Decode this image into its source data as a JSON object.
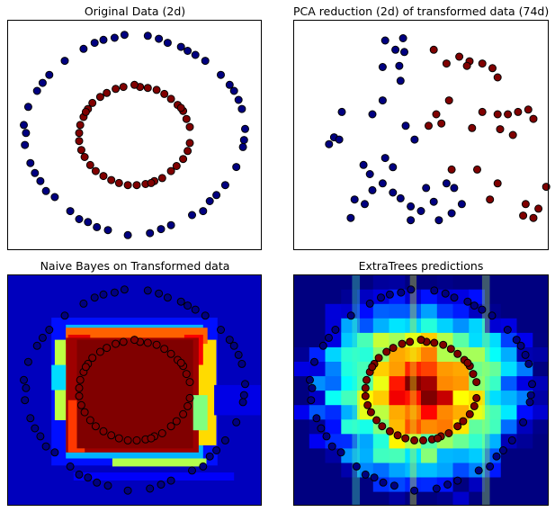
{
  "chart_data": [
    {
      "type": "scatter",
      "title": "Original Data (2d)",
      "xlim": [
        -1.15,
        1.15
      ],
      "ylim": [
        -1.15,
        1.15
      ],
      "series": [
        {
          "color": "#000080",
          "points": [
            [
              0.12,
              0.99
            ],
            [
              0.3,
              0.92
            ],
            [
              0.48,
              0.84
            ],
            [
              0.64,
              0.74
            ],
            [
              0.78,
              0.6
            ],
            [
              0.9,
              0.44
            ],
            [
              0.97,
              0.26
            ],
            [
              1.0,
              0.06
            ],
            [
              0.98,
              -0.12
            ],
            [
              0.92,
              -0.32
            ],
            [
              0.82,
              -0.5
            ],
            [
              0.68,
              -0.66
            ],
            [
              0.52,
              -0.8
            ],
            [
              0.33,
              -0.9
            ],
            [
              0.14,
              -0.98
            ],
            [
              -0.06,
              -1.0
            ],
            [
              -0.24,
              -0.95
            ],
            [
              -0.42,
              -0.87
            ],
            [
              -0.58,
              -0.76
            ],
            [
              -0.72,
              -0.62
            ],
            [
              -0.85,
              -0.46
            ],
            [
              -0.94,
              -0.28
            ],
            [
              -0.99,
              -0.1
            ],
            [
              -1.0,
              0.1
            ],
            [
              -0.96,
              0.28
            ],
            [
              -0.88,
              0.44
            ],
            [
              -0.77,
              0.6
            ],
            [
              -0.63,
              0.74
            ],
            [
              -0.46,
              0.86
            ],
            [
              -0.28,
              0.95
            ],
            [
              -0.09,
              1.0
            ],
            [
              0.22,
              0.96
            ],
            [
              0.55,
              0.8
            ],
            [
              0.86,
              0.5
            ],
            [
              0.99,
              -0.05
            ],
            [
              0.74,
              -0.6
            ],
            [
              0.24,
              -0.94
            ],
            [
              -0.34,
              -0.92
            ],
            [
              -0.8,
              -0.56
            ],
            [
              -0.98,
              0.02
            ],
            [
              -0.83,
              0.52
            ],
            [
              -0.36,
              0.92
            ],
            [
              -0.18,
              0.97
            ],
            [
              0.42,
              0.88
            ],
            [
              0.94,
              0.35
            ],
            [
              0.62,
              -0.76
            ],
            [
              -0.5,
              -0.84
            ],
            [
              -0.9,
              -0.38
            ]
          ]
        },
        {
          "color": "#800000",
          "points": [
            [
              0.05,
              0.48
            ],
            [
              0.2,
              0.45
            ],
            [
              0.33,
              0.36
            ],
            [
              0.44,
              0.24
            ],
            [
              0.5,
              0.08
            ],
            [
              0.5,
              -0.08
            ],
            [
              0.44,
              -0.24
            ],
            [
              0.33,
              -0.36
            ],
            [
              0.18,
              -0.46
            ],
            [
              0.02,
              -0.5
            ],
            [
              -0.14,
              -0.48
            ],
            [
              -0.28,
              -0.41
            ],
            [
              -0.4,
              -0.3
            ],
            [
              -0.48,
              -0.15
            ],
            [
              -0.5,
              0.02
            ],
            [
              -0.46,
              0.18
            ],
            [
              -0.38,
              0.32
            ],
            [
              -0.25,
              0.42
            ],
            [
              -0.1,
              0.48
            ],
            [
              0.12,
              0.47
            ],
            [
              0.27,
              0.41
            ],
            [
              0.39,
              0.3
            ],
            [
              0.47,
              0.16
            ],
            [
              0.48,
              -0.16
            ],
            [
              0.38,
              -0.31
            ],
            [
              0.25,
              -0.43
            ],
            [
              0.1,
              -0.49
            ],
            [
              -0.06,
              -0.5
            ],
            [
              -0.21,
              -0.45
            ],
            [
              -0.35,
              -0.36
            ],
            [
              -0.45,
              -0.22
            ],
            [
              -0.5,
              -0.06
            ],
            [
              -0.49,
              0.1
            ],
            [
              -0.42,
              0.26
            ],
            [
              -0.31,
              0.38
            ],
            [
              -0.17,
              0.46
            ],
            [
              0.0,
              0.5
            ],
            [
              0.42,
              0.27
            ],
            [
              -0.44,
              0.23
            ],
            [
              0.15,
              -0.48
            ]
          ]
        }
      ]
    },
    {
      "type": "scatter",
      "title": "PCA reduction (2d) of transformed data (74d)",
      "xlim": [
        -1.0,
        1.0
      ],
      "ylim": [
        -1.0,
        1.0
      ],
      "series": [
        {
          "color": "#000080",
          "points": [
            [
              -0.28,
              0.82
            ],
            [
              -0.14,
              0.84
            ],
            [
              -0.2,
              0.74
            ],
            [
              -0.13,
              0.72
            ],
            [
              -0.17,
              0.6
            ],
            [
              -0.3,
              0.59
            ],
            [
              -0.16,
              0.47
            ],
            [
              -0.3,
              0.3
            ],
            [
              -0.38,
              0.18
            ],
            [
              -0.12,
              0.08
            ],
            [
              -0.05,
              -0.04
            ],
            [
              -0.68,
              -0.02
            ],
            [
              -0.64,
              -0.04
            ],
            [
              -0.72,
              -0.08
            ],
            [
              -0.28,
              -0.2
            ],
            [
              -0.45,
              -0.26
            ],
            [
              -0.4,
              -0.34
            ],
            [
              -0.22,
              -0.28
            ],
            [
              -0.3,
              -0.42
            ],
            [
              -0.22,
              -0.5
            ],
            [
              -0.16,
              -0.55
            ],
            [
              -0.08,
              -0.62
            ],
            [
              0.0,
              -0.66
            ],
            [
              0.1,
              -0.58
            ],
            [
              0.04,
              -0.46
            ],
            [
              0.2,
              -0.42
            ],
            [
              0.26,
              -0.46
            ],
            [
              0.32,
              -0.6
            ],
            [
              -0.38,
              -0.48
            ],
            [
              -0.55,
              -0.72
            ],
            [
              -0.52,
              -0.56
            ],
            [
              -0.08,
              -0.74
            ],
            [
              0.14,
              -0.74
            ],
            [
              0.24,
              -0.68
            ],
            [
              -0.62,
              0.2
            ],
            [
              -0.44,
              -0.6
            ]
          ]
        },
        {
          "color": "#800000",
          "points": [
            [
              0.1,
              0.74
            ],
            [
              0.3,
              0.68
            ],
            [
              0.38,
              0.64
            ],
            [
              0.56,
              0.58
            ],
            [
              0.6,
              0.5
            ],
            [
              0.48,
              0.62
            ],
            [
              0.2,
              0.62
            ],
            [
              0.36,
              0.6
            ],
            [
              0.22,
              0.3
            ],
            [
              0.48,
              0.2
            ],
            [
              0.6,
              0.18
            ],
            [
              0.68,
              0.18
            ],
            [
              0.76,
              0.2
            ],
            [
              0.84,
              0.22
            ],
            [
              0.88,
              0.14
            ],
            [
              0.62,
              0.05
            ],
            [
              0.72,
              0.0
            ],
            [
              0.12,
              0.18
            ],
            [
              0.16,
              0.1
            ],
            [
              0.06,
              0.08
            ],
            [
              0.4,
              0.06
            ],
            [
              0.24,
              -0.3
            ],
            [
              0.44,
              -0.3
            ],
            [
              0.6,
              -0.42
            ],
            [
              0.82,
              -0.6
            ],
            [
              0.8,
              -0.7
            ],
            [
              0.88,
              -0.72
            ],
            [
              0.92,
              -0.64
            ],
            [
              0.98,
              -0.45
            ],
            [
              0.54,
              -0.56
            ]
          ]
        }
      ]
    },
    {
      "type": "heatmap",
      "title": "Naive Bayes on Transformed data",
      "xlim": [
        -1.15,
        1.15
      ],
      "ylim": [
        -1.15,
        1.15
      ],
      "colormap": "jet"
    },
    {
      "type": "heatmap",
      "title": "ExtraTrees predictions",
      "xlim": [
        -1.15,
        1.15
      ],
      "ylim": [
        -1.15,
        1.15
      ],
      "colormap": "jet"
    }
  ],
  "colors": {
    "outer_class": "#000080",
    "inner_class": "#800000"
  }
}
